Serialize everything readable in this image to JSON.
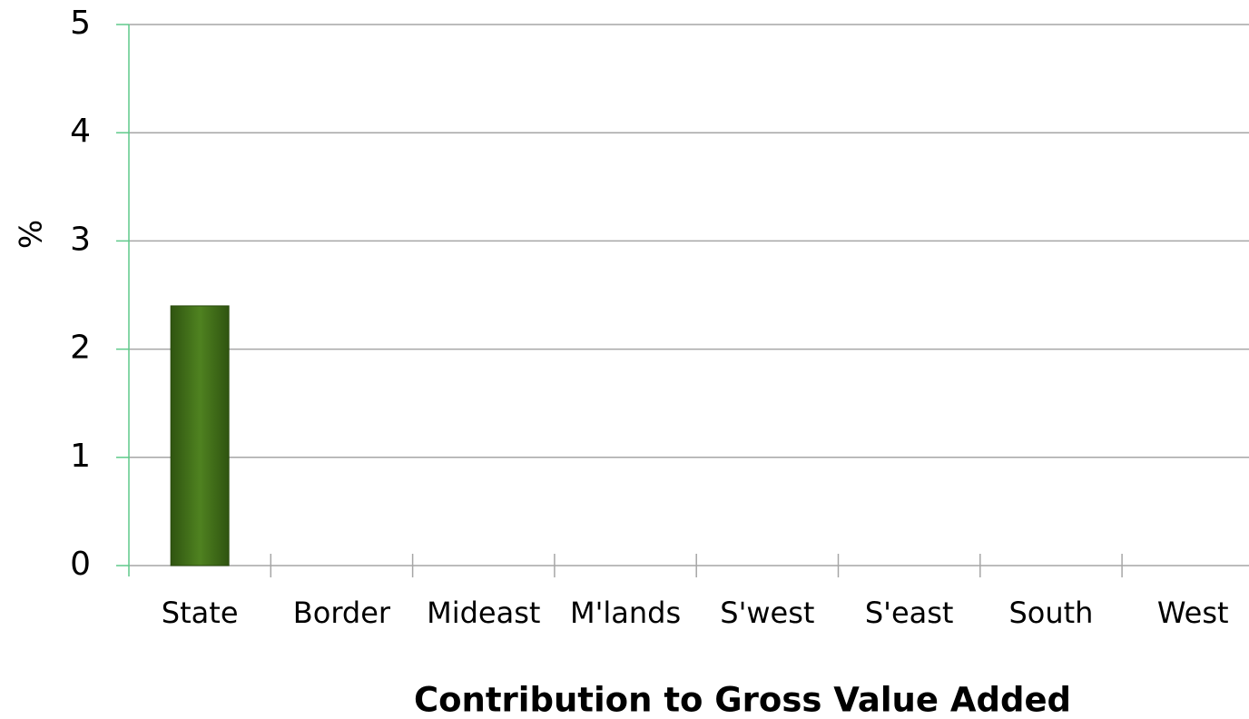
{
  "chart_data": {
    "type": "bar",
    "categories": [
      "State",
      "Border",
      "Mideast",
      "M'lands",
      "S'west",
      "S'east",
      "South",
      "West"
    ],
    "values": [
      2.4,
      0,
      0,
      0,
      0,
      0,
      0,
      0
    ],
    "color": "#4a7a1c",
    "ylabel": "%",
    "xlabel": "Contribution to Gross Value Added",
    "ylim": [
      0,
      5
    ],
    "yticks": [
      0,
      1,
      2,
      3,
      4,
      5
    ],
    "grid": true
  }
}
